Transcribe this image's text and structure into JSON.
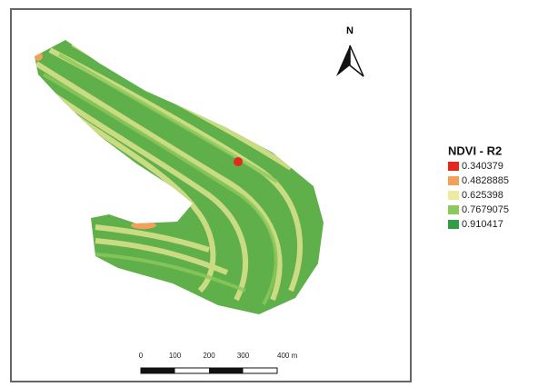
{
  "map": {
    "north_label": "N",
    "legend": {
      "title": "NDVI - R2",
      "items": [
        {
          "label": "0.340379",
          "color": "#e3281e"
        },
        {
          "label": "0.4828885",
          "color": "#f2a05a"
        },
        {
          "label": "0.625398",
          "color": "#eeeaa0"
        },
        {
          "label": "0.7679075",
          "color": "#8cc85c"
        },
        {
          "label": "0.910417",
          "color": "#2f9e44"
        }
      ]
    },
    "scale_bar": {
      "labels": [
        "0",
        "100",
        "200",
        "300",
        "400 m"
      ]
    }
  }
}
